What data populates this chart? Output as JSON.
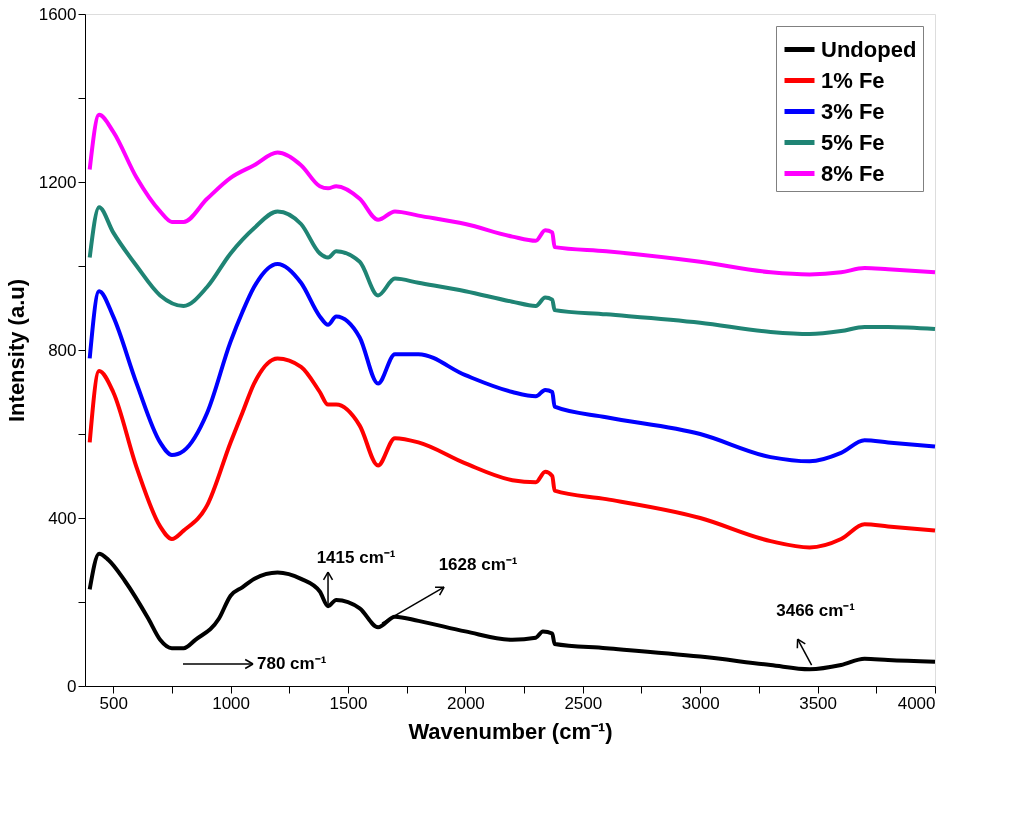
{
  "chart_data": {
    "type": "line",
    "xlabel": "Wavenumber (cm⁻¹)",
    "ylabel": "Intensity (a.u)",
    "xlim": [
      380,
      4000
    ],
    "ylim": [
      0,
      1600
    ],
    "xticks": [
      500,
      {
        "value": 750,
        "label": null
      },
      1000,
      {
        "value": 1250,
        "label": null
      },
      1500,
      {
        "value": 1750,
        "label": null
      },
      2000,
      {
        "value": 2250,
        "label": null
      },
      2500,
      {
        "value": 2750,
        "label": null
      },
      3000,
      {
        "value": 3250,
        "label": null
      },
      3500,
      {
        "value": 3750,
        "label": null
      },
      4000
    ],
    "yticks": [
      0,
      {
        "value": 200,
        "label": null
      },
      400,
      {
        "value": 600,
        "label": null
      },
      800,
      {
        "value": 1000,
        "label": null
      },
      1200,
      {
        "value": 1400,
        "label": null
      },
      1600
    ],
    "grid": false,
    "legend": "top right",
    "marker": "none",
    "line_style": "solid",
    "series": [
      {
        "name": "Undoped",
        "color": "#000000",
        "x": [
          400,
          440,
          480,
          550,
          650,
          700,
          750,
          800,
          850,
          950,
          1000,
          1050,
          1100,
          1200,
          1300,
          1380,
          1415,
          1450,
          1550,
          1628,
          1700,
          1800,
          2000,
          2200,
          2300,
          2330,
          2370,
          2380,
          2600,
          3000,
          3300,
          3466,
          3600,
          3700,
          3800,
          4000
        ],
        "values": [
          230,
          315,
          300,
          250,
          160,
          110,
          90,
          90,
          110,
          160,
          215,
          235,
          255,
          270,
          255,
          225,
          190,
          205,
          185,
          140,
          165,
          155,
          130,
          110,
          115,
          130,
          125,
          100,
          90,
          70,
          50,
          40,
          50,
          65,
          62,
          58
        ]
      },
      {
        "name": "1% Fe",
        "color": "#ff0000",
        "x": [
          400,
          440,
          500,
          600,
          700,
          750,
          800,
          900,
          1000,
          1050,
          1100,
          1200,
          1300,
          1380,
          1415,
          1450,
          1550,
          1628,
          1700,
          1800,
          2000,
          2200,
          2300,
          2340,
          2370,
          2380,
          2600,
          3000,
          3300,
          3466,
          3600,
          3700,
          3800,
          4000
        ],
        "values": [
          580,
          750,
          700,
          520,
          380,
          350,
          370,
          430,
          580,
          650,
          720,
          780,
          760,
          700,
          670,
          670,
          620,
          525,
          590,
          580,
          530,
          490,
          485,
          510,
          500,
          465,
          445,
          400,
          345,
          330,
          350,
          385,
          380,
          370
        ]
      },
      {
        "name": "3% Fe",
        "color": "#0000ff",
        "x": [
          400,
          440,
          500,
          600,
          700,
          750,
          800,
          900,
          1000,
          1050,
          1100,
          1200,
          1300,
          1380,
          1415,
          1450,
          1550,
          1628,
          1700,
          1800,
          2000,
          2200,
          2300,
          2340,
          2370,
          2380,
          2600,
          3000,
          3300,
          3466,
          3600,
          3700,
          3800,
          4000
        ],
        "values": [
          780,
          940,
          880,
          720,
          580,
          550,
          560,
          650,
          820,
          890,
          950,
          1005,
          960,
          880,
          860,
          880,
          830,
          720,
          790,
          790,
          740,
          700,
          690,
          705,
          700,
          665,
          640,
          600,
          545,
          535,
          555,
          585,
          580,
          570
        ]
      },
      {
        "name": "5% Fe",
        "color": "#1f8474",
        "x": [
          400,
          440,
          500,
          600,
          700,
          800,
          900,
          1000,
          1100,
          1200,
          1300,
          1380,
          1415,
          1450,
          1550,
          1628,
          1700,
          1800,
          2000,
          2200,
          2300,
          2340,
          2370,
          2380,
          2600,
          3000,
          3300,
          3466,
          3600,
          3700,
          3800,
          4000
        ],
        "values": [
          1020,
          1140,
          1080,
          1000,
          930,
          905,
          950,
          1030,
          1090,
          1130,
          1100,
          1030,
          1020,
          1035,
          1010,
          930,
          970,
          960,
          940,
          915,
          905,
          925,
          920,
          895,
          885,
          865,
          843,
          838,
          845,
          855,
          855,
          850
        ]
      },
      {
        "name": "8% Fe",
        "color": "#ff00ff",
        "x": [
          400,
          440,
          500,
          600,
          700,
          750,
          800,
          900,
          1000,
          1100,
          1200,
          1300,
          1380,
          1415,
          1450,
          1550,
          1628,
          1700,
          1800,
          2000,
          2200,
          2300,
          2340,
          2370,
          2380,
          2600,
          3000,
          3300,
          3466,
          3600,
          3700,
          3800,
          4000
        ],
        "values": [
          1230,
          1360,
          1320,
          1210,
          1130,
          1105,
          1105,
          1160,
          1210,
          1240,
          1270,
          1240,
          1190,
          1185,
          1190,
          1160,
          1110,
          1130,
          1120,
          1100,
          1070,
          1060,
          1085,
          1080,
          1045,
          1035,
          1010,
          985,
          980,
          985,
          995,
          992,
          985
        ]
      }
    ],
    "annotations": [
      "780 cm⁻¹",
      {
        "text": "1415 cm⁻¹",
        "x": 1415,
        "y": 190
      },
      {
        "text": "1628 cm⁻¹",
        "x": 1628,
        "y": 140
      },
      {
        "text": "3466 cm⁻¹",
        "x": 3466,
        "y": 40
      }
    ]
  }
}
